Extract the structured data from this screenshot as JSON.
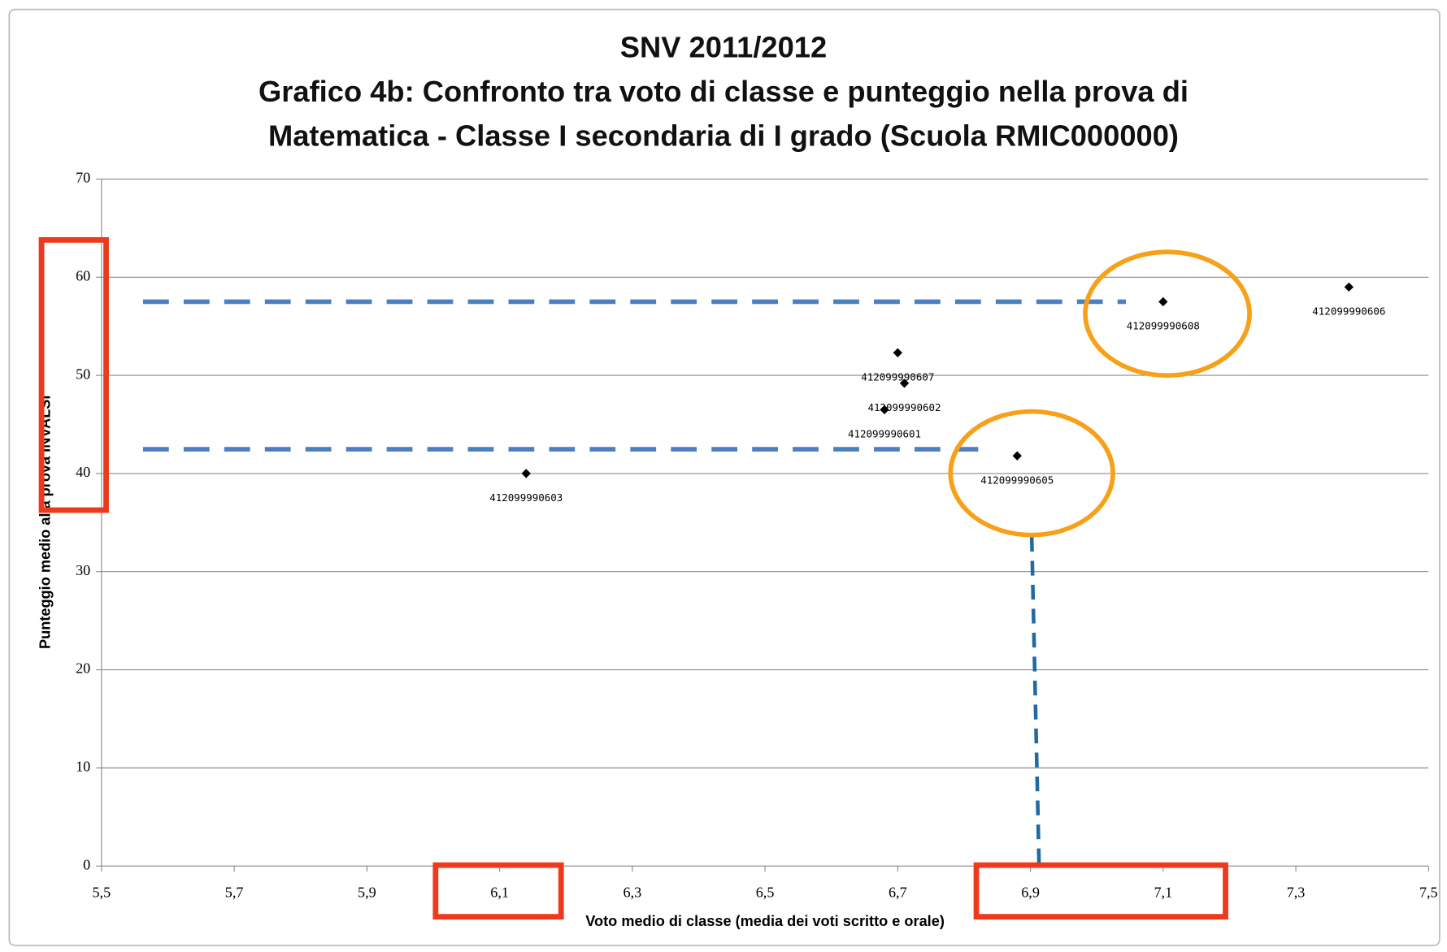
{
  "chart_data": {
    "type": "scatter",
    "title": "SNV 2011/2012",
    "subtitle": [
      "Grafico 4b: Confronto tra voto di classe e punteggio nella prova di",
      "Matematica - Classe I secondaria di I grado (Scuola RMIC000000)"
    ],
    "x_label": "Voto medio di classe (media dei voti scritto e orale)",
    "y_label": "Punteggio medio alla prova INVALSI",
    "x": [
      6.14,
      6.7,
      6.71,
      6.68,
      6.88,
      7.1,
      7.38
    ],
    "values": [
      40.0,
      52.3,
      49.2,
      46.5,
      41.8,
      57.5,
      59.0
    ],
    "point_labels": [
      "412099990603",
      "412099990607",
      "412099990602",
      "412099990601",
      "412099990605",
      "412099990608",
      "412099990606"
    ],
    "color": "#000000",
    "xlim": [
      5.5,
      7.5
    ],
    "xticks": [
      {
        "value": 5.5,
        "label": "5,5"
      },
      {
        "value": 5.7,
        "label": "5,7"
      },
      {
        "value": 5.9,
        "label": "5,9"
      },
      {
        "value": 6.1,
        "label": "6,1"
      },
      {
        "value": 6.3,
        "label": "6,3"
      },
      {
        "value": 6.5,
        "label": "6,5"
      },
      {
        "value": 6.7,
        "label": "6,7"
      },
      {
        "value": 6.9,
        "label": "6,9"
      },
      {
        "value": 7.1,
        "label": "7,1"
      },
      {
        "value": 7.3,
        "label": "7,3"
      },
      {
        "value": 7.5,
        "label": "7,5"
      }
    ],
    "ylim": [
      0,
      70
    ],
    "yticks": [
      0,
      10,
      20,
      30,
      40,
      50,
      60,
      70
    ],
    "grid": true
  }
}
